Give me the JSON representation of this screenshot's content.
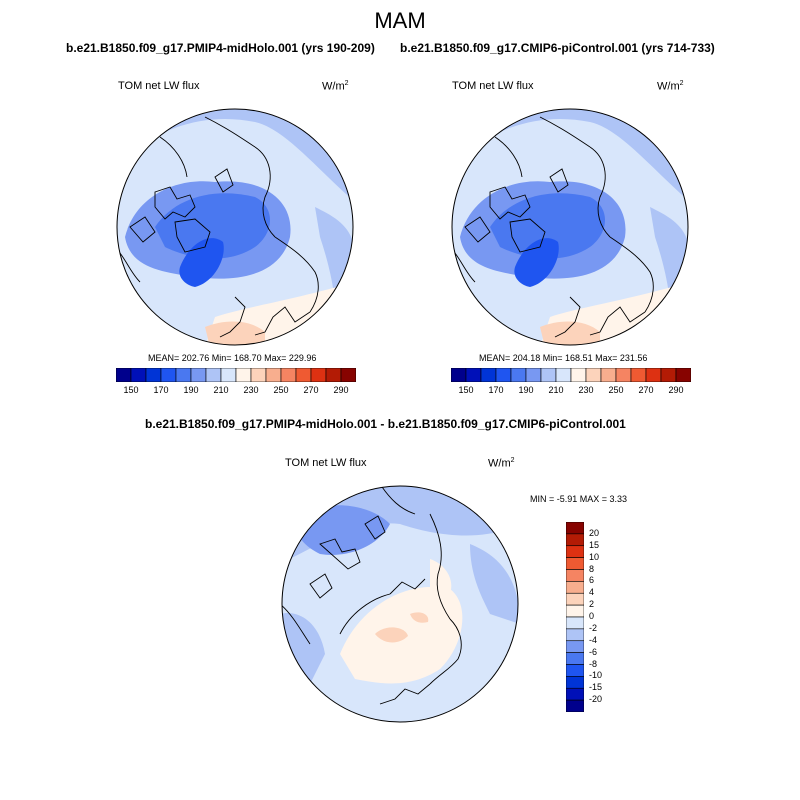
{
  "figure": {
    "title": "MAM",
    "panel_left_title": "b.e21.B1850.f09_g17.PMIP4-midHolo.001 (yrs 190-209)",
    "panel_right_title": "b.e21.B1850.f09_g17.CMIP6-piControl.001 (yrs 714-733)",
    "panel_diff_title": "b.e21.B1850.f09_g17.PMIP4-midHolo.001 - b.e21.B1850.f09_g17.CMIP6-piControl.001"
  },
  "maps": [
    {
      "label": "TOM net LW flux",
      "units_base": "W/m",
      "units_sup": "2",
      "stats": "MEAN= 202.76  Min= 168.70  Max= 229.96"
    },
    {
      "label": "TOM net LW flux",
      "units_base": "W/m",
      "units_sup": "2",
      "stats": "MEAN= 204.18  Min= 168.51  Max= 231.56"
    },
    {
      "label": "TOM net LW flux",
      "units_base": "W/m",
      "units_sup": "2",
      "stats": "MIN =  -5.91 MAX =   3.33"
    }
  ],
  "colorbar_top": {
    "tick_labels": [
      "150",
      "170",
      "190",
      "210",
      "230",
      "250",
      "270",
      "290"
    ],
    "colors": [
      "#00008c",
      "#0010b8",
      "#0034d6",
      "#1f55f0",
      "#4a78f0",
      "#7898f2",
      "#aec4f6",
      "#d8e6fb",
      "#fff4ea",
      "#fcd3bb",
      "#f8ae8e",
      "#f58462",
      "#ef5a32",
      "#dd3112",
      "#b31b05",
      "#870300"
    ]
  },
  "colorbar_diff": {
    "tick_labels": [
      "20",
      "15",
      "10",
      "8",
      "6",
      "4",
      "2",
      "0",
      "-2",
      "-4",
      "-6",
      "-8",
      "-10",
      "-15",
      "-20"
    ],
    "colors": [
      "#870300",
      "#b31b05",
      "#dd3112",
      "#ef5a32",
      "#f58462",
      "#f8ae8e",
      "#fcd3bb",
      "#fff4ea",
      "#d8e6fb",
      "#aec4f6",
      "#7898f2",
      "#4a78f0",
      "#1f55f0",
      "#0034d6",
      "#0010b8",
      "#00008c"
    ]
  },
  "palette": {
    "lightest_blue": "#d8e6fb",
    "light_blue": "#aec4f6",
    "mid_blue": "#7898f2",
    "blue": "#4a78f0",
    "dark_blue": "#1f55f0",
    "cream": "#fff4ea",
    "peach": "#fcd3bb"
  }
}
